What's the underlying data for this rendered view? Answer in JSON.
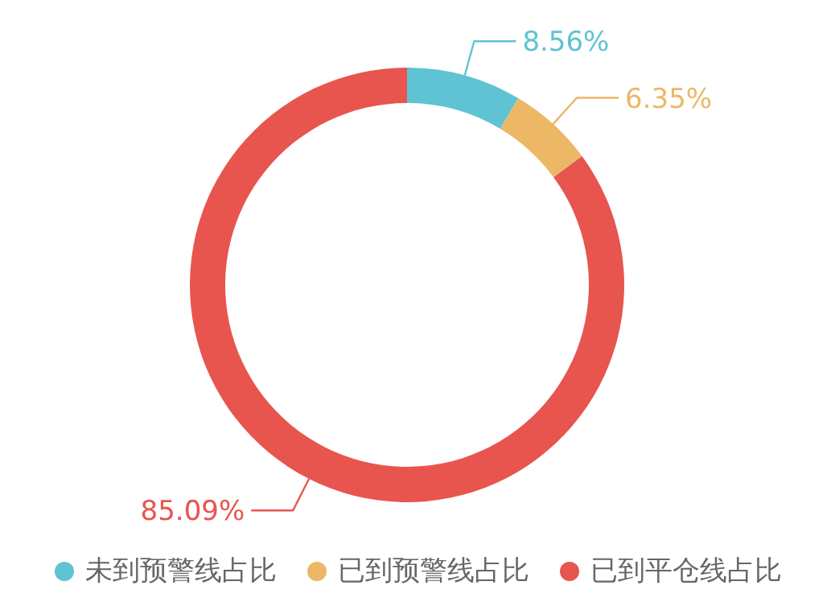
{
  "chart_data": {
    "type": "donut",
    "categories": [
      "未到预警线占比",
      "已到预警线占比",
      "已到平仓线占比"
    ],
    "values": [
      8.56,
      6.35,
      85.09
    ],
    "colors": [
      "#5fc3d3",
      "#ecb865",
      "#e8554f"
    ],
    "value_labels": [
      "8.56%",
      "6.35%",
      "85.09%"
    ],
    "legend": "bottom"
  }
}
